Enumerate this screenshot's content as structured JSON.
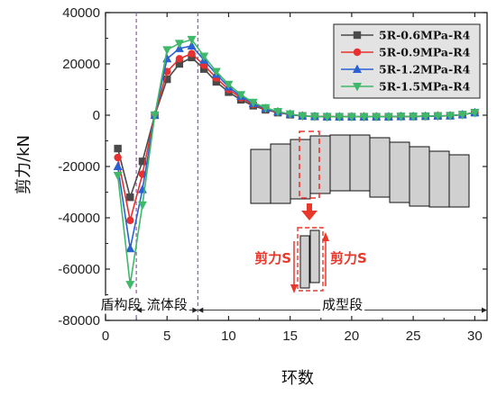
{
  "chart_data": {
    "type": "line",
    "xlabel": "环数",
    "ylabel": "剪力/kN",
    "xlim": [
      0,
      31
    ],
    "ylim": [
      -80000,
      40000
    ],
    "xticks": [
      0,
      5,
      10,
      15,
      20,
      25,
      30
    ],
    "yticks": [
      -80000,
      -60000,
      -40000,
      -20000,
      0,
      20000,
      40000
    ],
    "legend_position": "top-right",
    "grid": false,
    "x": [
      1,
      2,
      3,
      4,
      5,
      6,
      7,
      8,
      9,
      10,
      11,
      12,
      13,
      14,
      15,
      16,
      17,
      18,
      19,
      20,
      21,
      22,
      23,
      24,
      25,
      26,
      27,
      28,
      29,
      30
    ],
    "series": [
      {
        "name": "5R-0.6MPa-R4",
        "marker": "square",
        "color": "#4a4a4a",
        "values": [
          -13000,
          -32000,
          -18000,
          0,
          14000,
          20000,
          22500,
          18000,
          13000,
          9000,
          6000,
          3700,
          2100,
          1000,
          200,
          -300,
          -500,
          -600,
          -600,
          -600,
          -600,
          -600,
          -600,
          -500,
          -500,
          -400,
          -300,
          -200,
          200,
          1000
        ]
      },
      {
        "name": "5R-0.9MPa-R4",
        "marker": "circle",
        "color": "#e8312f",
        "values": [
          -16500,
          -41000,
          -23000,
          0,
          17000,
          22000,
          24000,
          19500,
          14500,
          10000,
          6800,
          4200,
          2400,
          1200,
          300,
          -300,
          -500,
          -600,
          -600,
          -600,
          -600,
          -600,
          -600,
          -500,
          -500,
          -400,
          -300,
          -200,
          200,
          1000
        ]
      },
      {
        "name": "5R-1.2MPa-R4",
        "marker": "triangle-up",
        "color": "#2a62d3",
        "values": [
          -20000,
          -52000,
          -29000,
          0,
          22000,
          26000,
          27000,
          21500,
          16000,
          11000,
          7400,
          4600,
          2600,
          1300,
          400,
          -300,
          -500,
          -600,
          -600,
          -600,
          -600,
          -600,
          -600,
          -500,
          -500,
          -400,
          -300,
          -200,
          200,
          1000
        ]
      },
      {
        "name": "5R-1.5MPa-R4",
        "marker": "triangle-down",
        "color": "#3fb86a",
        "values": [
          -23500,
          -66000,
          -35000,
          0,
          25500,
          28000,
          29500,
          23000,
          17000,
          12000,
          8000,
          5000,
          2900,
          1400,
          500,
          -300,
          -500,
          -600,
          -600,
          -600,
          -600,
          -600,
          -600,
          -500,
          -500,
          -400,
          -300,
          -200,
          200,
          1000
        ]
      }
    ],
    "stages": [
      {
        "label": "盾构段",
        "from": 0,
        "to": 2.5
      },
      {
        "label": "流体段",
        "from": 2.5,
        "to": 7.5
      },
      {
        "label": "成型段",
        "from": 7.5,
        "to": 31
      }
    ],
    "stage_dividers": [
      2.5,
      7.5
    ],
    "inset": {
      "shear_left_label": "剪力S",
      "shear_right_label": "剪力S"
    }
  }
}
